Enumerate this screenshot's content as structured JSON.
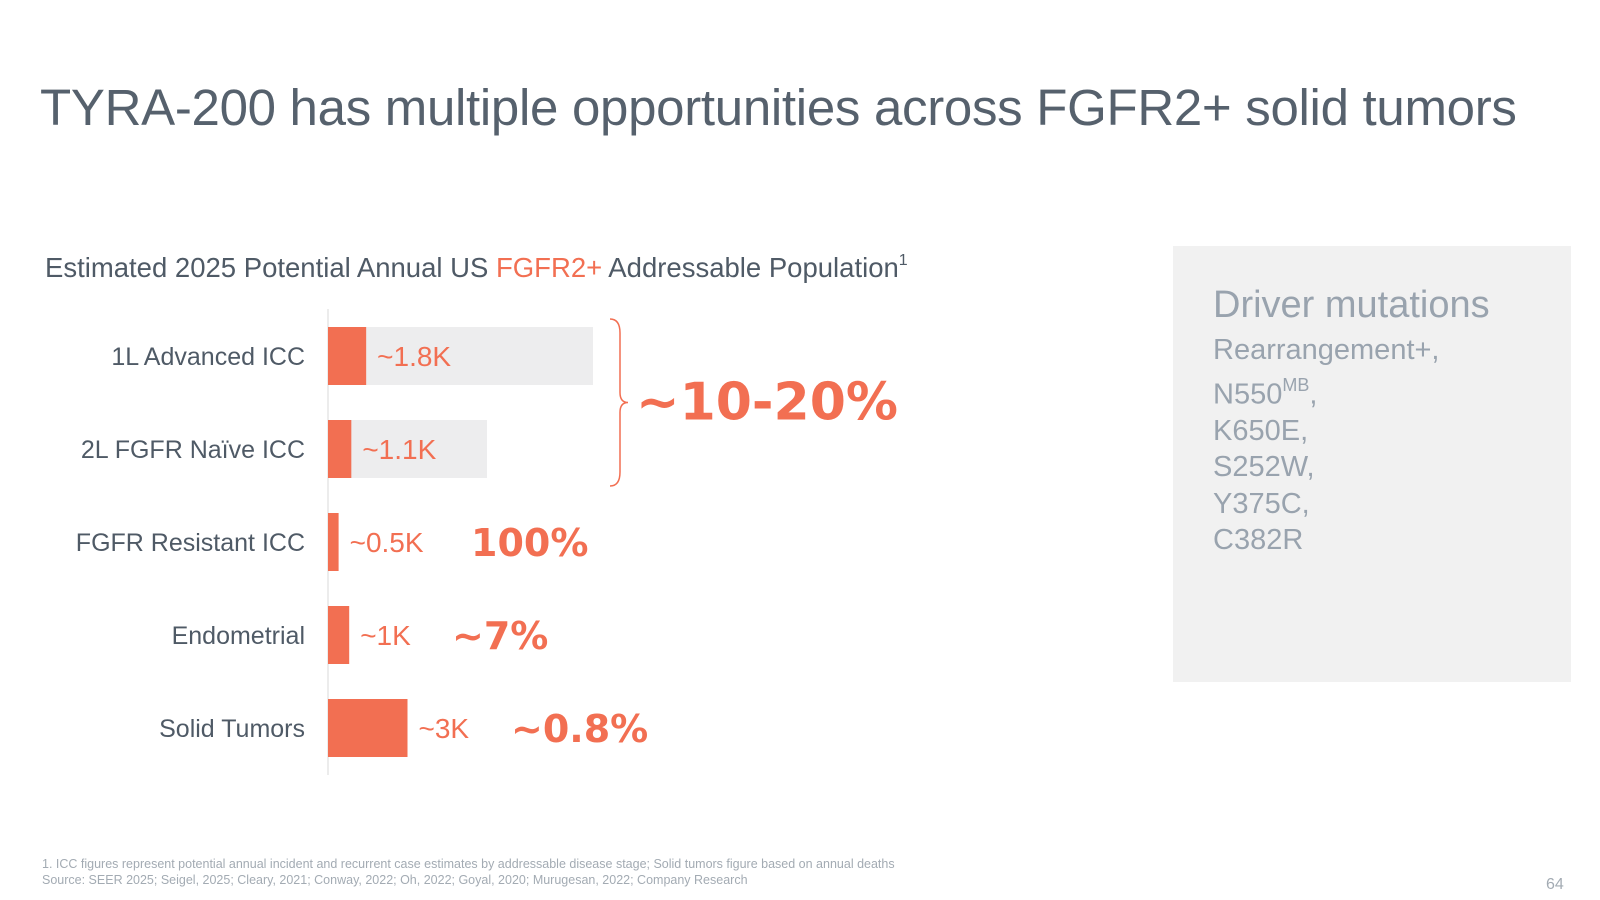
{
  "slide": {
    "title": "TYRA-200 has multiple opportunities across FGFR2+ solid tumors",
    "subtitle_pre": "Estimated 2025 Potential Annual US ",
    "subtitle_highlight": "FGFR2+",
    "subtitle_post": " Addressable Population",
    "subtitle_sup": "1",
    "page_number": "64"
  },
  "side_box": {
    "title": "Driver mutations",
    "items": [
      {
        "text": "Rearrangement+,",
        "sup": "",
        "suffix": ""
      },
      {
        "text": "N550",
        "sup": "MB",
        "suffix": ","
      },
      {
        "text": "K650E,",
        "sup": "",
        "suffix": ""
      },
      {
        "text": "S252W,",
        "sup": "",
        "suffix": ""
      },
      {
        "text": "Y375C,",
        "sup": "",
        "suffix": ""
      },
      {
        "text": "C382R",
        "sup": "",
        "suffix": ""
      }
    ]
  },
  "footnotes": {
    "line1": "1. ICC figures represent potential annual incident and recurrent case estimates by addressable disease stage; Solid tumors figure based on annual deaths",
    "line2": "Source: SEER 2025; Seigel, 2025; Cleary, 2021; Conway, 2022; Oh, 2022; Goyal, 2020; Murugesan, 2022; Company Research"
  },
  "colors": {
    "accent": "#f26f52",
    "bar_background": "#ededee",
    "label": "#4f5a66",
    "axis": "#d8d8d8"
  },
  "chart_data": {
    "type": "bar",
    "orientation": "horizontal",
    "categories": [
      "1L Advanced ICC",
      "2L FGFR Naïve ICC",
      "FGFR Resistant ICC",
      "Endometrial",
      "Solid Tumors"
    ],
    "series": [
      {
        "values": [
          0.36,
          0.22,
          0.1,
          0.2,
          0.75
        ]
      }
    ],
    "total_population": [
      2.5,
      1.5,
      null,
      null,
      null
    ],
    "value_labels": [
      "~1.8K",
      "~1.1K",
      "~0.5K",
      "~1K",
      "~3K"
    ],
    "percent_labels": [
      {
        "text": "~10-20%",
        "applies_to": [
          "1L Advanced ICC",
          "2L FGFR Naïve ICC"
        ]
      },
      {
        "text": "100%",
        "applies_to": [
          "FGFR Resistant ICC"
        ]
      },
      {
        "text": "~7%",
        "applies_to": [
          "Endometrial"
        ]
      },
      {
        "text": "~0.8%",
        "applies_to": [
          "Solid Tumors"
        ]
      }
    ],
    "xlabel": "",
    "ylabel": "",
    "xlim": [
      0,
      2.5
    ],
    "grid": false,
    "legend": "none"
  }
}
